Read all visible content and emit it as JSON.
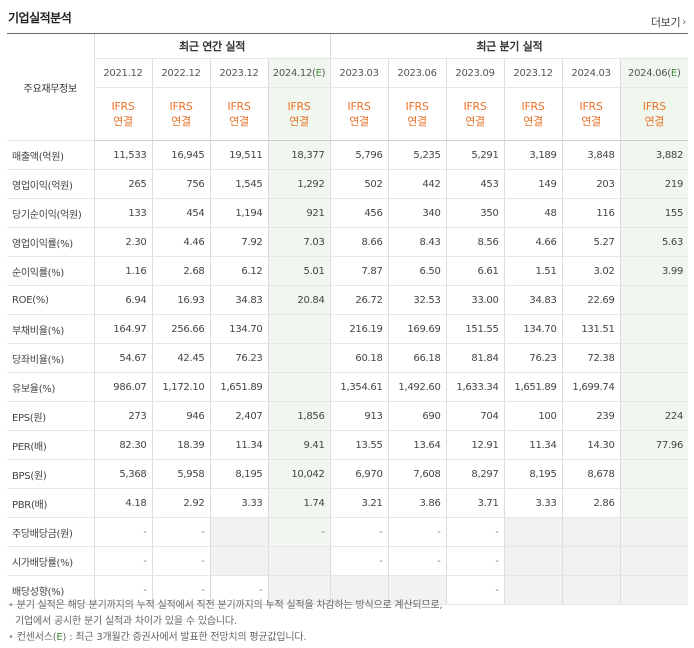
{
  "section": {
    "title": "기업실적분석",
    "more_label": "더보기"
  },
  "table": {
    "corner_label": "주요재무정보",
    "group_annual": "최근 연간 실적",
    "group_quarter": "최근 분기 실적",
    "periods": [
      "2021.12",
      "2022.12",
      "2023.12",
      "2024.12(E)",
      "2023.03",
      "2023.06",
      "2023.09",
      "2023.12",
      "2024.03",
      "2024.06(E)"
    ],
    "ifrs_line1": "IFRS",
    "ifrs_line2": "연결",
    "rows": [
      {
        "label": "매출액(억원)",
        "values": [
          "11,533",
          "16,945",
          "19,511",
          "18,377",
          "5,796",
          "5,235",
          "5,291",
          "3,189",
          "3,848",
          "3,882"
        ]
      },
      {
        "label": "영업이익(억원)",
        "values": [
          "265",
          "756",
          "1,545",
          "1,292",
          "502",
          "442",
          "453",
          "149",
          "203",
          "219"
        ]
      },
      {
        "label": "당기순이익(억원)",
        "values": [
          "133",
          "454",
          "1,194",
          "921",
          "456",
          "340",
          "350",
          "48",
          "116",
          "155"
        ]
      },
      {
        "label": "영업이익률(%)",
        "values": [
          "2.30",
          "4.46",
          "7.92",
          "7.03",
          "8.66",
          "8.43",
          "8.56",
          "4.66",
          "5.27",
          "5.63"
        ]
      },
      {
        "label": "순이익률(%)",
        "values": [
          "1.16",
          "2.68",
          "6.12",
          "5.01",
          "7.87",
          "6.50",
          "6.61",
          "1.51",
          "3.02",
          "3.99"
        ]
      },
      {
        "label": "ROE(%)",
        "values": [
          "6.94",
          "16.93",
          "34.83",
          "20.84",
          "26.72",
          "32.53",
          "33.00",
          "34.83",
          "22.69",
          ""
        ]
      },
      {
        "label": "부채비율(%)",
        "values": [
          "164.97",
          "256.66",
          "134.70",
          "",
          "216.19",
          "169.69",
          "151.55",
          "134.70",
          "131.51",
          ""
        ]
      },
      {
        "label": "당좌비율(%)",
        "values": [
          "54.67",
          "42.45",
          "76.23",
          "",
          "60.18",
          "66.18",
          "81.84",
          "76.23",
          "72.38",
          ""
        ]
      },
      {
        "label": "유보율(%)",
        "values": [
          "986.07",
          "1,172.10",
          "1,651.89",
          "",
          "1,354.61",
          "1,492.60",
          "1,633.34",
          "1,651.89",
          "1,699.74",
          ""
        ]
      },
      {
        "label": "EPS(원)",
        "values": [
          "273",
          "946",
          "2,407",
          "1,856",
          "913",
          "690",
          "704",
          "100",
          "239",
          "224"
        ]
      },
      {
        "label": "PER(배)",
        "values": [
          "82.30",
          "18.39",
          "11.34",
          "9.41",
          "13.55",
          "13.64",
          "12.91",
          "11.34",
          "14.30",
          "77.96"
        ]
      },
      {
        "label": "BPS(원)",
        "values": [
          "5,368",
          "5,958",
          "8,195",
          "10,042",
          "6,970",
          "7,608",
          "8,297",
          "8,195",
          "8,678",
          ""
        ]
      },
      {
        "label": "PBR(배)",
        "values": [
          "4.18",
          "2.92",
          "3.33",
          "1.74",
          "3.21",
          "3.86",
          "3.71",
          "3.33",
          "2.86",
          ""
        ]
      },
      {
        "label": "주당배당금(원)",
        "values": [
          "-",
          "-",
          "",
          "-",
          "-",
          "-",
          "-",
          "",
          "",
          ""
        ]
      },
      {
        "label": "시가배당률(%)",
        "values": [
          "-",
          "-",
          "",
          "",
          "-",
          "-",
          "-",
          "",
          "",
          ""
        ]
      },
      {
        "label": "배당성향(%)",
        "values": [
          "-",
          "-",
          "-",
          "",
          "",
          "",
          "-",
          "",
          "",
          ""
        ]
      }
    ]
  },
  "notes": {
    "line1": "분기 실적은 해당 분기까지의 누적 실적에서 직전 분기까지의 누적 실적을 차감하는 방식으로 계산되므로,",
    "line2": "기업에서 공시한 분기 실적과 차이가 있을 수 있습니다.",
    "line3_prefix": "컨센서스(",
    "line3_e": "E",
    "line3_suffix": ") : 최근 3개월간 증권사에서 발표한 전망치의 평균값입니다."
  },
  "colors": {
    "ifrs": "#e8732a",
    "estimate_bg": "#f0f7ee",
    "estimate_mark": "#3c8a3c",
    "blank_gray": "#f2f2f2"
  }
}
